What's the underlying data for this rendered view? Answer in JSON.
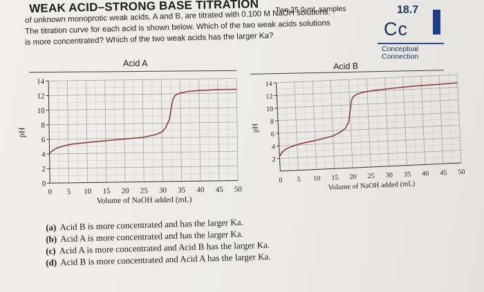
{
  "header": {
    "title": "WEAK ACID–STRONG BASE TITRATION",
    "title_note": "Two 25.0-mL samples",
    "question_lines": [
      "of unknown monoprotic weak acids, A and B, are titrated with 0.100 M NaOH solutions.",
      "The titration curve for each acid is shown below. Which of the two weak acids solutions",
      "is more concentrated? Which of the two weak acids has the larger Ka?"
    ]
  },
  "badge": {
    "number": "18.7",
    "symbol": "Cc",
    "caption_lines": [
      "Conceptual",
      "Connection"
    ],
    "color": "#1e3f88"
  },
  "chart_data": [
    {
      "type": "line",
      "title": "Acid A",
      "xlabel": "Volume of NaOH added (mL)",
      "ylabel": "pH",
      "xlim": [
        0,
        50
      ],
      "ylim": [
        0,
        14
      ],
      "x_ticks": [
        "0",
        "5",
        "10",
        "15",
        "20",
        "25",
        "30",
        "35",
        "40",
        "45",
        "50"
      ],
      "y_ticks": [
        "0",
        "2",
        "4",
        "6",
        "8",
        "10",
        "12",
        "14"
      ],
      "grid": true,
      "line_color": "#8a3a3a",
      "series": [
        {
          "x": [
            0,
            1,
            2,
            4,
            6,
            10,
            15,
            20,
            25,
            28,
            30,
            31,
            32,
            32.5,
            33,
            33.5,
            34,
            35,
            37,
            40,
            45,
            50
          ],
          "y": [
            4.1,
            4.5,
            4.8,
            5.1,
            5.3,
            5.5,
            5.7,
            5.9,
            6.1,
            6.4,
            6.8,
            7.4,
            8.5,
            10.0,
            11.2,
            11.7,
            11.9,
            12.1,
            12.3,
            12.4,
            12.5,
            12.5
          ]
        }
      ]
    },
    {
      "type": "line",
      "title": "Acid B",
      "xlabel": "Volume of NaOH added (mL)",
      "ylabel": "pH",
      "xlim": [
        0,
        50
      ],
      "ylim": [
        0,
        14
      ],
      "x_ticks": [
        "0",
        "5",
        "10",
        "15",
        "20",
        "25",
        "30",
        "35",
        "40",
        "45",
        "50"
      ],
      "y_ticks": [
        "2",
        "4",
        "6",
        "8",
        "10",
        "12",
        "14"
      ],
      "grid": true,
      "line_color": "#8a3a3a",
      "series": [
        {
          "x": [
            0,
            1,
            2,
            4,
            6,
            9,
            12,
            15,
            17,
            18.5,
            19.5,
            20,
            20.5,
            21,
            22,
            24,
            27,
            32,
            38,
            45,
            50
          ],
          "y": [
            2.4,
            3.1,
            3.5,
            3.9,
            4.2,
            4.5,
            4.8,
            5.2,
            5.7,
            6.3,
            7.3,
            9.0,
            10.6,
            11.2,
            11.6,
            11.9,
            12.1,
            12.3,
            12.5,
            12.6,
            12.7
          ]
        }
      ]
    }
  ],
  "answers": [
    {
      "label": "(a)",
      "text": "Acid B is more concentrated and has the larger Ka."
    },
    {
      "label": "(b)",
      "text": "Acid A is more concentrated and has the larger Ka."
    },
    {
      "label": "(c)",
      "text": "Acid A is more concentrated and Acid B has the larger Ka."
    },
    {
      "label": "(d)",
      "text": "Acid B is more concentrated and Acid A has the larger Ka."
    }
  ]
}
